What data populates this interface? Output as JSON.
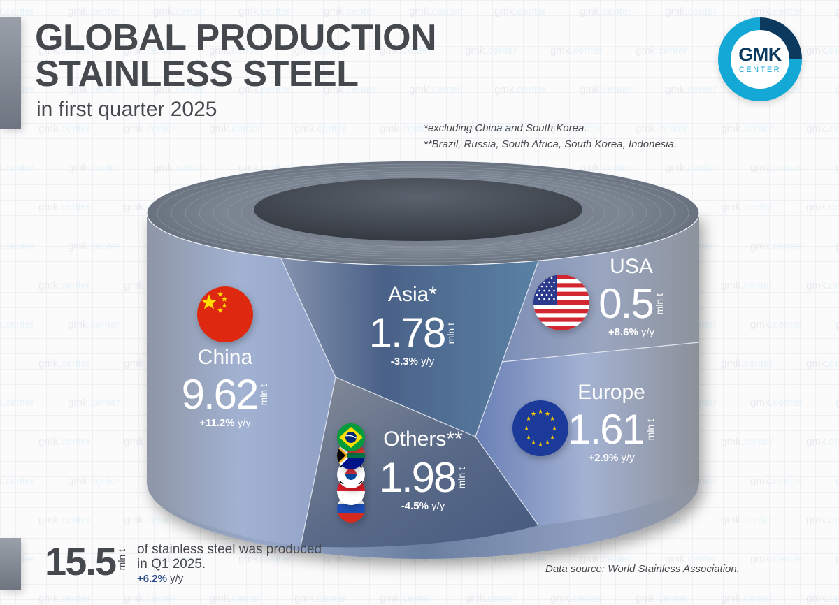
{
  "header": {
    "title_line1": "GLOBAL PRODUCTION",
    "title_line2": "STAINLESS STEEL",
    "subtitle": "in first quarter 2025"
  },
  "logo": {
    "top": "GMK",
    "bottom": "CENTER",
    "colors": {
      "dark": "#0b3a5e",
      "light": "#14a8d6"
    }
  },
  "notes": {
    "note1": "*excluding China and South Korea.",
    "note2": "**Brazil, Russia, South Africa, South Korea, Indonesia."
  },
  "watermark": {
    "part1": "gmk.",
    "part2": "center"
  },
  "unit": "mln t",
  "yoy_suffix": "y/y",
  "regions": {
    "china": {
      "name": "China",
      "value": "9.62",
      "change": "+11.2%",
      "flag": "china-flag"
    },
    "asia": {
      "name": "Asia*",
      "value": "1.78",
      "change": "-3.3%",
      "flag": ""
    },
    "usa": {
      "name": "USA",
      "value": "0.5",
      "change": "+8.6%",
      "flag": "usa-flag"
    },
    "europe": {
      "name": "Europe",
      "value": "1.61",
      "change": "+2.9%",
      "flag": "eu-flag"
    },
    "others": {
      "name": "Others**",
      "value": "1.98",
      "change": "-4.5%",
      "flags": [
        "brazil-flag",
        "south-africa-flag",
        "south-korea-flag",
        "indonesia-flag",
        "russia-flag"
      ]
    }
  },
  "total": {
    "value": "15.5",
    "unit": "mln t",
    "text_line1": "of stainless steel was produced",
    "text_line2": "in Q1 2025.",
    "change": "+6.2%",
    "suffix": "y/y"
  },
  "source": "Data source: World Stainless Association.",
  "chart_data": {
    "type": "pie",
    "title": "Global production stainless steel in first quarter 2025",
    "unit": "mln t",
    "categories": [
      "China",
      "Asia*",
      "USA",
      "Europe",
      "Others**"
    ],
    "values": [
      9.62,
      1.78,
      0.5,
      1.61,
      1.98
    ],
    "yoy_change_pct": [
      11.2,
      -3.3,
      8.6,
      2.9,
      -4.5
    ],
    "total": 15.5,
    "total_yoy_change_pct": 6.2,
    "annotations": [
      "*excluding China and South Korea.",
      "**Brazil, Russia, South Africa, South Korea, Indonesia."
    ],
    "source": "World Stainless Association"
  }
}
